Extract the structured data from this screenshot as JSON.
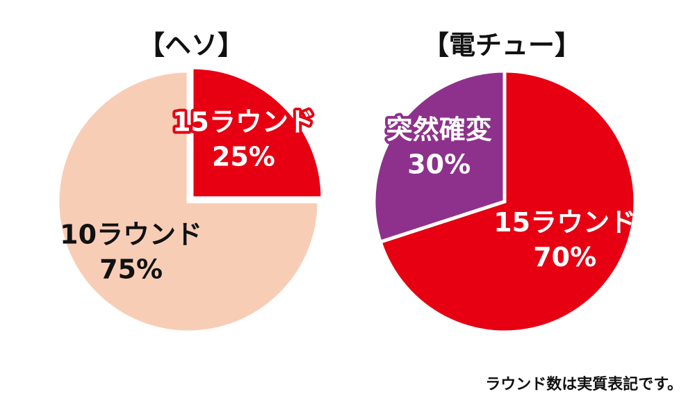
{
  "chart_data": [
    {
      "type": "pie",
      "title": "【ヘソ】",
      "slices": [
        {
          "label": "15ラウンド",
          "value": 25,
          "display": "25%",
          "color": "#e60012",
          "label_color": "#ffffff",
          "label_outline": "#e60012"
        },
        {
          "label": "10ラウンド",
          "value": 75,
          "display": "75%",
          "color": "#f8cdb6",
          "label_color": "#111111",
          "label_outline": ""
        }
      ],
      "start": "top, clockwise",
      "exploded": "15ラウンド"
    },
    {
      "type": "pie",
      "title": "【電チュー】",
      "slices": [
        {
          "label": "15ラウンド",
          "value": 70,
          "display": "70%",
          "color": "#e60012",
          "label_color": "#ffffff",
          "label_outline": ""
        },
        {
          "label": "突然確変",
          "value": 30,
          "display": "30%",
          "color": "#8e318c",
          "label_color": "#ffffff",
          "label_outline": "#8e318c"
        }
      ],
      "start": "top, clockwise"
    }
  ],
  "footnote": "ラウンド数は実質表記です。"
}
